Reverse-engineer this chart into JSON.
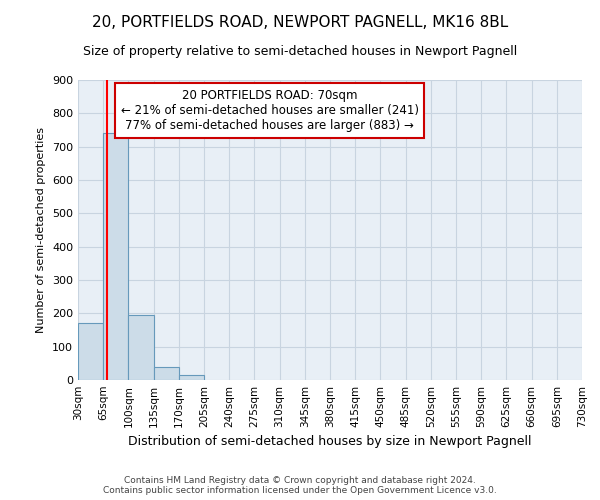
{
  "title1": "20, PORTFIELDS ROAD, NEWPORT PAGNELL, MK16 8BL",
  "title2": "Size of property relative to semi-detached houses in Newport Pagnell",
  "xlabel": "Distribution of semi-detached houses by size in Newport Pagnell",
  "ylabel": "Number of semi-detached properties",
  "footnote1": "Contains HM Land Registry data © Crown copyright and database right 2024.",
  "footnote2": "Contains public sector information licensed under the Open Government Licence v3.0.",
  "bin_edges": [
    30,
    65,
    100,
    135,
    170,
    205,
    240,
    275,
    310,
    345,
    380,
    415,
    450,
    485,
    520,
    555,
    590,
    625,
    660,
    695,
    730
  ],
  "bar_heights": [
    170,
    740,
    195,
    40,
    15,
    0,
    0,
    0,
    0,
    0,
    0,
    0,
    0,
    0,
    0,
    0,
    0,
    0,
    0,
    0
  ],
  "bar_color": "#ccdce8",
  "bar_edge_color": "#6699bb",
  "grid_color": "#c8d4e0",
  "background_color": "#e8eff6",
  "red_line_x": 70,
  "annotation_line1": "20 PORTFIELDS ROAD: 70sqm",
  "annotation_line2": "← 21% of semi-detached houses are smaller (241)",
  "annotation_line3": "77% of semi-detached houses are larger (883) →",
  "annotation_box_color": "#cc0000",
  "ylim": [
    0,
    900
  ],
  "yticks": [
    0,
    100,
    200,
    300,
    400,
    500,
    600,
    700,
    800,
    900
  ]
}
